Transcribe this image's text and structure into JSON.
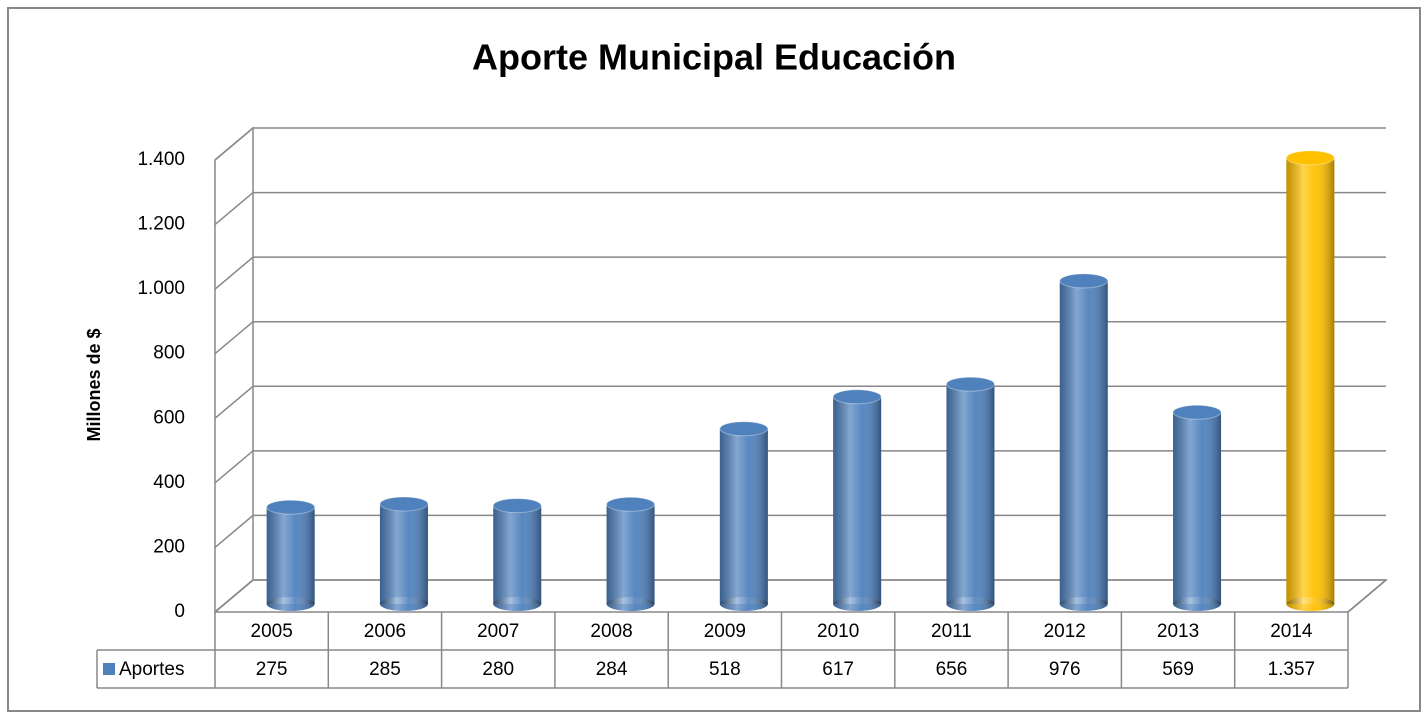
{
  "chart_data": {
    "type": "bar",
    "title": "Aporte Municipal Educación",
    "ylabel": "Millones de $",
    "categories": [
      "2005",
      "2006",
      "2007",
      "2008",
      "2009",
      "2010",
      "2011",
      "2012",
      "2013",
      "2014"
    ],
    "series": [
      {
        "name": "Aportes",
        "color": "#4f81bd",
        "colors": [
          "#4f81bd",
          "#4f81bd",
          "#4f81bd",
          "#4f81bd",
          "#4f81bd",
          "#4f81bd",
          "#4f81bd",
          "#4f81bd",
          "#4f81bd",
          "#ffc000"
        ],
        "values": [
          275,
          285,
          280,
          284,
          518,
          617,
          656,
          976,
          569,
          1357
        ],
        "value_labels": [
          "275",
          "285",
          "280",
          "284",
          "518",
          "617",
          "656",
          "976",
          "569",
          "1.357"
        ]
      }
    ],
    "ylim": [
      0,
      1400
    ],
    "yticks": [
      0,
      200,
      400,
      600,
      800,
      {
        "value": 1000,
        "label": "1.000"
      },
      {
        "value": 1200,
        "label": "1.200"
      },
      {
        "value": 1400,
        "label": "1.400"
      }
    ],
    "grid": true
  }
}
